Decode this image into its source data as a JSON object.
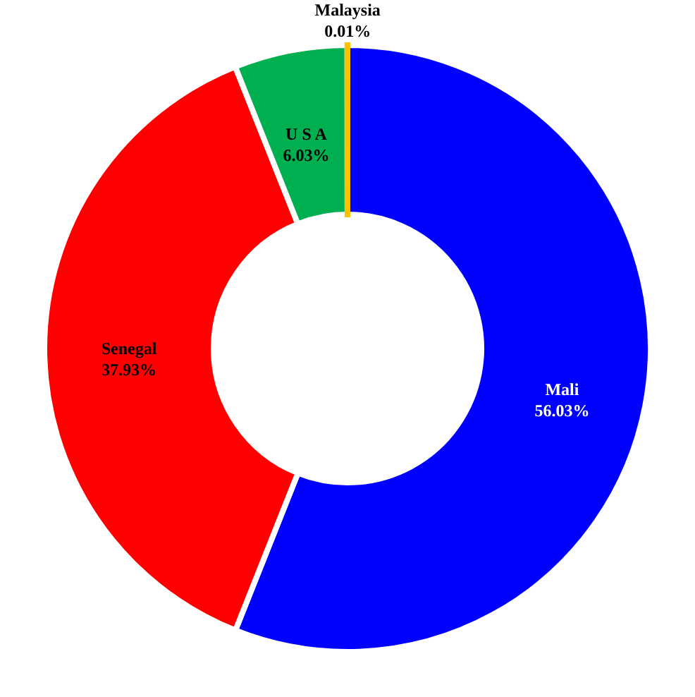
{
  "chart_data": {
    "type": "donut",
    "categories": [
      "Mali",
      "Senegal",
      "U S A",
      "Malaysia"
    ],
    "values": [
      56.03,
      37.93,
      6.03,
      0.01
    ],
    "colors": [
      "#0000ff",
      "#ff0000",
      "#00b050",
      "#ffc000"
    ],
    "value_labels": [
      "56.03%",
      "37.93%",
      "6.03%",
      "0.01%"
    ]
  }
}
